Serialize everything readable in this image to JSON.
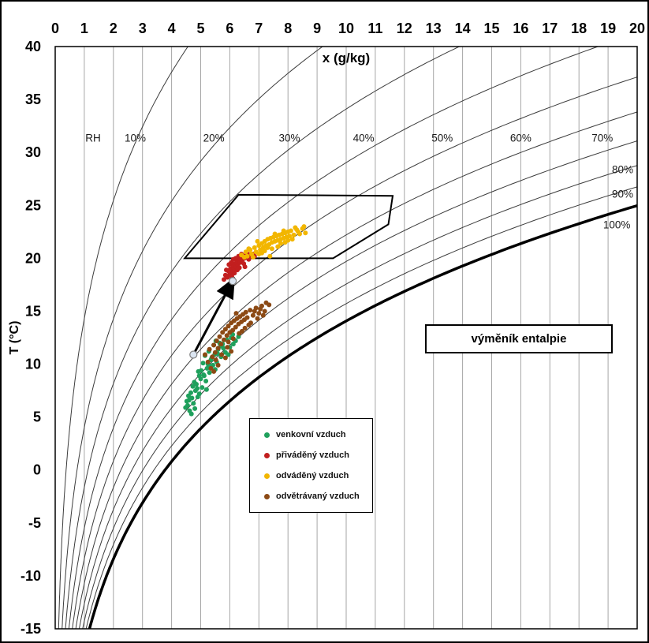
{
  "chart_data": {
    "type": "scatter",
    "xlabel": "x (g/kg)",
    "ylabel": "T (°C)",
    "xlim": [
      0,
      20
    ],
    "ylim": [
      -15,
      40
    ],
    "x_ticks": [
      0,
      1,
      2,
      3,
      4,
      5,
      6,
      7,
      8,
      9,
      10,
      11,
      12,
      13,
      14,
      15,
      16,
      17,
      18,
      19,
      20
    ],
    "y_ticks": [
      40,
      35,
      30,
      25,
      20,
      15,
      10,
      5,
      0,
      -5,
      -10,
      -15
    ],
    "grid": "vertical-only",
    "legend_position": "inside-lower-middle",
    "rh_curves": {
      "values": [
        10,
        20,
        30,
        40,
        50,
        60,
        70,
        80,
        90,
        100
      ],
      "labels": [
        {
          "text": "RH",
          "x": 1.3,
          "t": 31.4
        },
        {
          "text": "10%",
          "x": 2.75,
          "t": 31.4
        },
        {
          "text": "20%",
          "x": 5.45,
          "t": 31.4
        },
        {
          "text": "30%",
          "x": 8.05,
          "t": 31.4
        },
        {
          "text": "40%",
          "x": 10.6,
          "t": 31.4
        },
        {
          "text": "50%",
          "x": 13.3,
          "t": 31.4
        },
        {
          "text": "60%",
          "x": 16.0,
          "t": 31.4
        },
        {
          "text": "70%",
          "x": 18.8,
          "t": 31.4
        },
        {
          "text": "80%",
          "x": 19.5,
          "t": 28.4
        },
        {
          "text": "90%",
          "x": 19.5,
          "t": 26.1
        },
        {
          "text": "100%",
          "x": 19.3,
          "t": 23.2
        }
      ]
    },
    "series": [
      {
        "name": "venkovní vzduch",
        "color": "#1fa05c",
        "points": [
          [
            4.55,
            6.1
          ],
          [
            4.62,
            5.6
          ],
          [
            4.7,
            6.8
          ],
          [
            4.58,
            7.0
          ],
          [
            4.75,
            6.3
          ],
          [
            4.82,
            7.5
          ],
          [
            4.68,
            5.3
          ],
          [
            4.9,
            6.9
          ],
          [
            4.85,
            8.1
          ],
          [
            4.95,
            7.2
          ],
          [
            5.0,
            8.6
          ],
          [
            4.78,
            8.3
          ],
          [
            5.05,
            7.8
          ],
          [
            5.1,
            9.0
          ],
          [
            4.92,
            9.3
          ],
          [
            5.18,
            8.4
          ],
          [
            5.22,
            9.6
          ],
          [
            5.08,
            10.1
          ],
          [
            5.3,
            9.2
          ],
          [
            5.35,
            10.4
          ],
          [
            5.15,
            10.8
          ],
          [
            5.42,
            9.9
          ],
          [
            5.48,
            10.9
          ],
          [
            5.28,
            11.2
          ],
          [
            5.55,
            10.2
          ],
          [
            5.6,
            11.4
          ],
          [
            5.45,
            11.8
          ],
          [
            5.7,
            10.7
          ],
          [
            5.75,
            11.9
          ],
          [
            5.52,
            12.2
          ],
          [
            5.85,
            11.1
          ],
          [
            5.9,
            12.3
          ],
          [
            5.65,
            12.0
          ],
          [
            6.0,
            11.6
          ],
          [
            6.05,
            12.5
          ],
          [
            6.12,
            11.9
          ],
          [
            5.95,
            10.9
          ],
          [
            6.2,
            12.2
          ],
          [
            6.3,
            12.6
          ],
          [
            4.48,
            5.9
          ],
          [
            4.52,
            6.5
          ],
          [
            4.66,
            7.3
          ],
          [
            4.73,
            7.9
          ],
          [
            4.88,
            7.7
          ],
          [
            5.02,
            9.4
          ],
          [
            5.12,
            8.9
          ],
          [
            5.25,
            10.0
          ],
          [
            5.38,
            10.6
          ],
          [
            5.58,
            11.0
          ],
          [
            5.78,
            11.5
          ],
          [
            4.6,
            6.6
          ],
          [
            4.95,
            8.9
          ],
          [
            5.33,
            9.8
          ],
          [
            5.68,
            11.7
          ],
          [
            6.1,
            12.8
          ],
          [
            5.2,
            7.6
          ],
          [
            4.8,
            5.8
          ],
          [
            5.5,
            9.5
          ]
        ]
      },
      {
        "name": "přiváděný vzduch",
        "color": "#c21f1f",
        "points": [
          [
            5.8,
            18.0
          ],
          [
            5.85,
            18.4
          ],
          [
            5.92,
            18.2
          ],
          [
            5.95,
            18.8
          ],
          [
            6.0,
            18.5
          ],
          [
            6.02,
            19.0
          ],
          [
            6.08,
            18.7
          ],
          [
            6.1,
            19.3
          ],
          [
            6.15,
            19.0
          ],
          [
            6.18,
            19.5
          ],
          [
            6.22,
            19.2
          ],
          [
            6.25,
            19.7
          ],
          [
            6.28,
            19.4
          ],
          [
            6.32,
            19.9
          ],
          [
            6.35,
            19.6
          ],
          [
            6.38,
            20.1
          ],
          [
            6.42,
            19.8
          ],
          [
            6.45,
            20.2
          ],
          [
            6.5,
            20.0
          ],
          [
            6.55,
            20.3
          ],
          [
            6.05,
            19.6
          ],
          [
            6.12,
            19.9
          ],
          [
            6.2,
            20.0
          ],
          [
            6.3,
            20.2
          ],
          [
            6.48,
            19.5
          ],
          [
            6.58,
            20.1
          ],
          [
            6.62,
            20.4
          ],
          [
            6.68,
            20.2
          ],
          [
            6.75,
            20.3
          ],
          [
            6.52,
            19.2
          ],
          [
            5.88,
            18.9
          ],
          [
            5.97,
            19.4
          ],
          [
            6.4,
            20.4
          ],
          [
            6.65,
            19.9
          ],
          [
            6.8,
            20.4
          ],
          [
            6.26,
            18.9
          ],
          [
            6.33,
            19.1
          ],
          [
            6.07,
            18.3
          ],
          [
            6.85,
            20.2
          ],
          [
            6.16,
            18.6
          ]
        ]
      },
      {
        "name": "odváděný vzduch",
        "color": "#f2b600",
        "points": [
          [
            6.4,
            20.3
          ],
          [
            6.55,
            20.6
          ],
          [
            6.6,
            20.2
          ],
          [
            6.7,
            20.8
          ],
          [
            6.75,
            20.4
          ],
          [
            6.85,
            21.0
          ],
          [
            6.9,
            20.6
          ],
          [
            7.0,
            21.2
          ],
          [
            7.05,
            20.8
          ],
          [
            7.1,
            21.4
          ],
          [
            7.15,
            21.0
          ],
          [
            7.2,
            21.6
          ],
          [
            7.25,
            21.2
          ],
          [
            7.3,
            21.8
          ],
          [
            7.35,
            21.3
          ],
          [
            7.4,
            21.9
          ],
          [
            7.45,
            21.5
          ],
          [
            7.5,
            22.0
          ],
          [
            7.55,
            21.6
          ],
          [
            7.6,
            22.1
          ],
          [
            7.65,
            21.7
          ],
          [
            7.7,
            22.2
          ],
          [
            7.75,
            21.8
          ],
          [
            7.8,
            22.3
          ],
          [
            7.85,
            21.9
          ],
          [
            7.9,
            22.4
          ],
          [
            7.95,
            22.0
          ],
          [
            8.0,
            22.5
          ],
          [
            8.05,
            22.1
          ],
          [
            8.1,
            22.6
          ],
          [
            8.2,
            22.2
          ],
          [
            8.3,
            22.7
          ],
          [
            8.4,
            22.3
          ],
          [
            8.5,
            22.8
          ],
          [
            8.6,
            22.4
          ],
          [
            7.0,
            20.4
          ],
          [
            7.2,
            20.7
          ],
          [
            7.45,
            20.9
          ],
          [
            7.65,
            21.1
          ],
          [
            7.9,
            21.5
          ],
          [
            8.15,
            21.8
          ],
          [
            6.65,
            20.9
          ],
          [
            6.95,
            21.6
          ],
          [
            7.3,
            21.0
          ],
          [
            7.55,
            22.3
          ],
          [
            7.85,
            22.6
          ],
          [
            8.25,
            22.9
          ],
          [
            6.5,
            20.1
          ],
          [
            7.1,
            20.5
          ],
          [
            7.75,
            21.4
          ],
          [
            8.35,
            22.5
          ],
          [
            8.55,
            23.0
          ],
          [
            7.38,
            20.2
          ],
          [
            8.0,
            21.7
          ],
          [
            6.8,
            20.1
          ]
        ]
      },
      {
        "name": "odvětrávaný vzduch",
        "color": "#8c4a15",
        "points": [
          [
            5.15,
            10.9
          ],
          [
            5.25,
            10.2
          ],
          [
            5.3,
            11.4
          ],
          [
            5.4,
            10.7
          ],
          [
            5.45,
            11.8
          ],
          [
            5.5,
            11.1
          ],
          [
            5.55,
            12.2
          ],
          [
            5.6,
            11.5
          ],
          [
            5.65,
            12.6
          ],
          [
            5.7,
            11.9
          ],
          [
            5.75,
            13.0
          ],
          [
            5.8,
            12.3
          ],
          [
            5.85,
            13.3
          ],
          [
            5.9,
            12.7
          ],
          [
            5.95,
            13.6
          ],
          [
            6.0,
            13.0
          ],
          [
            6.05,
            13.9
          ],
          [
            6.1,
            13.2
          ],
          [
            6.15,
            14.1
          ],
          [
            6.2,
            13.5
          ],
          [
            6.25,
            14.3
          ],
          [
            6.3,
            13.8
          ],
          [
            6.35,
            14.5
          ],
          [
            6.4,
            14.0
          ],
          [
            6.45,
            14.7
          ],
          [
            6.5,
            14.2
          ],
          [
            6.55,
            14.9
          ],
          [
            6.6,
            14.4
          ],
          [
            6.7,
            15.1
          ],
          [
            6.8,
            14.6
          ],
          [
            6.9,
            15.3
          ],
          [
            7.0,
            14.8
          ],
          [
            7.1,
            15.5
          ],
          [
            7.2,
            15.0
          ],
          [
            7.35,
            15.6
          ],
          [
            5.35,
            9.6
          ],
          [
            5.52,
            10.4
          ],
          [
            5.72,
            10.9
          ],
          [
            5.92,
            11.6
          ],
          [
            6.12,
            12.4
          ],
          [
            6.32,
            12.9
          ],
          [
            6.52,
            13.4
          ],
          [
            6.72,
            13.9
          ],
          [
            6.95,
            14.3
          ],
          [
            7.15,
            14.6
          ],
          [
            5.6,
            9.9
          ],
          [
            5.95,
            12.1
          ],
          [
            6.42,
            13.1
          ],
          [
            6.85,
            15.0
          ],
          [
            7.25,
            15.8
          ],
          [
            5.45,
            9.3
          ],
          [
            6.05,
            11.2
          ],
          [
            6.65,
            13.7
          ],
          [
            7.05,
            15.2
          ],
          [
            5.85,
            10.6
          ],
          [
            6.22,
            14.8
          ]
        ]
      }
    ],
    "annotations": {
      "arrow": {
        "from": [
          4.75,
          10.9
        ],
        "to": [
          6.1,
          17.85
        ]
      },
      "region_polygon": [
        [
          4.45,
          20
        ],
        [
          6.3,
          26
        ],
        [
          11.6,
          25.9
        ],
        [
          11.45,
          23.2
        ],
        [
          9.55,
          20
        ]
      ],
      "heat_exchanger_label": {
        "text": "výměník entalpie"
      }
    },
    "colors": {
      "gridline": "#a6a6a6",
      "rh_curve": "#3c3c3c",
      "saturation_curve": "#000000",
      "arrow": "#000000",
      "endpoint_marker_fill": "#dbe5f1",
      "endpoint_marker_stroke": "#7f7f7f"
    }
  }
}
